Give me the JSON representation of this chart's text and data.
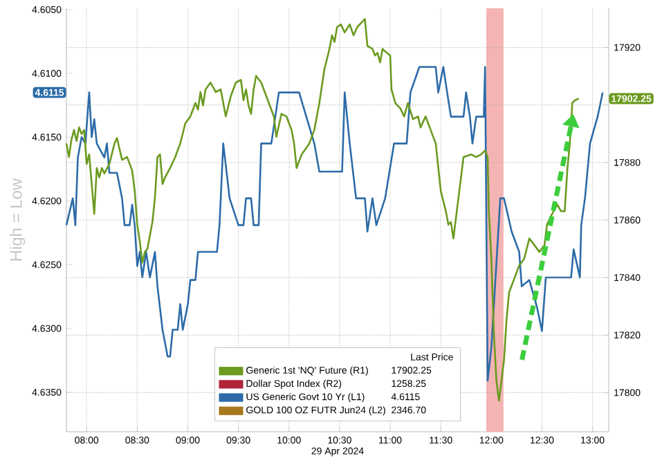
{
  "chart_data": {
    "type": "line",
    "xlabel": "29 Apr 2024",
    "ylabel": "High = Low",
    "legend_title": "Last Price",
    "xlim": [
      7.8,
      13.16
    ],
    "xticks": [
      {
        "value": 8,
        "label": "08:00"
      },
      {
        "value": 8.5,
        "label": "08:30"
      },
      {
        "value": 9,
        "label": "09:00"
      },
      {
        "value": 9.5,
        "label": "09:30"
      },
      {
        "value": 10,
        "label": "10:00"
      },
      {
        "value": 10.5,
        "label": "10:30"
      },
      {
        "value": 11,
        "label": "11:00"
      },
      {
        "value": 11.5,
        "label": "11:30"
      },
      {
        "value": 12,
        "label": "12:00"
      },
      {
        "value": 12.5,
        "label": "12:30"
      },
      {
        "value": 13,
        "label": "13:00"
      }
    ],
    "ylim": [
      4.6381,
      4.6049
    ],
    "yticks": [
      {
        "value": 4.605,
        "label": "4.6050"
      },
      {
        "value": 4.61,
        "label": "4.6100"
      },
      {
        "value": 4.615,
        "label": "4.6150"
      },
      {
        "value": 4.62,
        "label": "4.6200"
      },
      {
        "value": 4.625,
        "label": "4.6250"
      },
      {
        "value": 4.63,
        "label": "4.6300"
      },
      {
        "value": 4.635,
        "label": "4.6350"
      }
    ],
    "y2lim": [
      17786.4,
      17933.6
    ],
    "y2ticks": [
      17800,
      17820,
      17840,
      17860,
      17880,
      {
        "value": 17900,
        "label": null
      },
      17920
    ],
    "grid": true,
    "legend": "bottom",
    "bands": [
      {
        "axis": "x",
        "from": 11.95,
        "to": 12.12,
        "color": "#f4b4b4"
      }
    ],
    "annotations": [
      "17902.25",
      "1258.25",
      "4.6115",
      "2346.70",
      "4.6115",
      "17902.25"
    ],
    "series": [
      {
        "name": "Generic 1st 'NQ' Future (R1)",
        "color": "#6b9a1f",
        "axis": "y2",
        "x": [
          7.8,
          7.825,
          7.85,
          7.875,
          7.9,
          7.925,
          7.95,
          7.975,
          8.0,
          8.025,
          8.05,
          8.075,
          8.1,
          8.125,
          8.15,
          8.175,
          8.225,
          8.275,
          8.3,
          8.35,
          8.4,
          8.425,
          8.45,
          8.475,
          8.5,
          8.525,
          8.55,
          8.575,
          8.6,
          8.65,
          8.675,
          8.7,
          8.725,
          8.75,
          8.775,
          8.825,
          8.875,
          8.925,
          8.975,
          9.025,
          9.075,
          9.1,
          9.125,
          9.15,
          9.175,
          9.225,
          9.275,
          9.325,
          9.375,
          9.425,
          9.475,
          9.525,
          9.55,
          9.575,
          9.6,
          9.625,
          9.65,
          9.675,
          9.725,
          9.775,
          9.825,
          9.85,
          9.875,
          9.925,
          9.975,
          10.025,
          10.05,
          10.075,
          10.125,
          10.2,
          10.25,
          10.3,
          10.35,
          10.4,
          10.425,
          10.45,
          10.475,
          10.513,
          10.55,
          10.6,
          10.638,
          10.675,
          10.75,
          10.775,
          10.825,
          10.85,
          10.875,
          10.9,
          10.925,
          10.95,
          11.0,
          11.013,
          11.05,
          11.1,
          11.138,
          11.175,
          11.225,
          11.275,
          11.3,
          11.35,
          11.4,
          11.45,
          11.5,
          11.55,
          11.575,
          11.6,
          11.625,
          11.675,
          11.725,
          11.8,
          11.85,
          11.9,
          11.938,
          11.963,
          11.975,
          12.0,
          12.025,
          12.05,
          12.075,
          12.1,
          12.125,
          12.15,
          12.175,
          12.225,
          12.275,
          12.325,
          12.375,
          12.425,
          12.475,
          12.525,
          12.55,
          12.6,
          12.65,
          12.688,
          12.725,
          12.75,
          12.775,
          12.8,
          12.825,
          12.863
        ],
        "values": [
          17886.6,
          17881.9,
          17888.0,
          17891.3,
          17887.5,
          17892.2,
          17889.9,
          17891.3,
          17879.5,
          17882.8,
          17872.5,
          17862.1,
          17878.1,
          17874.8,
          17878.1,
          17876.2,
          17879.5,
          17886.6,
          17888.5,
          17880.9,
          17881.9,
          17879.5,
          17877.2,
          17870.1,
          17858.4,
          17852.7,
          17845.2,
          17848.9,
          17849.9,
          17859.3,
          17867.8,
          17881.9,
          17882.8,
          17872.5,
          17874.8,
          17878.1,
          17881.9,
          17886.6,
          17893.6,
          17896.0,
          17900.7,
          17898.4,
          17904.5,
          17899.8,
          17905.4,
          17907.8,
          17904.5,
          17905.4,
          17896.0,
          17903.1,
          17907.8,
          17908.7,
          17901.6,
          17905.4,
          17899.8,
          17896.9,
          17905.4,
          17910.1,
          17907.8,
          17903.1,
          17898.4,
          17896.0,
          17888.9,
          17896.9,
          17896.0,
          17891.3,
          17886.6,
          17878.1,
          17882.8,
          17886.6,
          17891.3,
          17900.7,
          17912.5,
          17919.5,
          17924.2,
          17921.9,
          17927.1,
          17928.0,
          17925.2,
          17928.0,
          17924.2,
          17927.1,
          17929.9,
          17920.5,
          17919.5,
          17917.2,
          17918.1,
          17914.8,
          17919.5,
          17918.6,
          17917.2,
          17905.4,
          17900.7,
          17898.8,
          17896.0,
          17900.7,
          17895.1,
          17896.0,
          17892.2,
          17896.0,
          17891.3,
          17886.6,
          17870.1,
          17863.1,
          17858.4,
          17859.3,
          17853.6,
          17867.8,
          17881.9,
          17882.8,
          17881.9,
          17882.8,
          17884.2,
          17881.9,
          17863.1,
          17846.6,
          17820.7,
          17804.2,
          17797.2,
          17804.2,
          17811.3,
          17825.4,
          17834.8,
          17839.5,
          17844.2,
          17846.6,
          17853.6,
          17851.3,
          17848.9,
          17851.3,
          17858.4,
          17862.1,
          17865.4,
          17863.1,
          17863.1,
          17877.2,
          17886.6,
          17900.7,
          17901.6,
          17902.2
        ]
      },
      {
        "name": "Dollar Spot Index (R2)",
        "color": "#b0243a"
      },
      {
        "name": "US Generic Govt 10 Yr (L1)",
        "color": "#2c6ba8",
        "x": [
          7.8,
          7.863,
          7.888,
          7.913,
          7.95,
          7.988,
          8.025,
          8.05,
          8.075,
          8.1,
          8.175,
          8.2,
          8.225,
          8.3,
          8.35,
          8.375,
          8.425,
          8.45,
          8.475,
          8.5,
          8.525,
          8.55,
          8.588,
          8.625,
          8.675,
          8.7,
          8.75,
          8.8,
          8.825,
          8.85,
          8.9,
          8.925,
          8.95,
          9.0,
          9.025,
          9.075,
          9.1,
          9.288,
          9.313,
          9.35,
          9.413,
          9.5,
          9.55,
          9.575,
          9.625,
          9.65,
          9.7,
          9.725,
          9.825,
          9.9,
          10.1,
          10.25,
          10.3,
          10.525,
          10.55,
          10.6,
          10.663,
          10.75,
          10.775,
          10.825,
          10.863,
          10.95,
          11.038,
          11.163,
          11.2,
          11.288,
          11.45,
          11.475,
          11.525,
          11.563,
          11.6,
          11.725,
          11.75,
          11.788,
          11.813,
          11.85,
          11.925,
          11.938,
          11.963,
          12.0,
          12.088,
          12.125,
          12.2,
          12.275,
          12.3,
          12.375,
          12.45,
          12.5,
          12.538,
          12.788,
          12.813,
          12.875,
          12.888,
          12.925,
          12.975,
          13.05,
          13.1
        ],
        "values": [
          4.6219,
          4.6198,
          4.6219,
          4.6166,
          4.615,
          4.6155,
          4.6115,
          4.615,
          4.6136,
          4.6155,
          4.6166,
          4.6155,
          4.6178,
          4.6178,
          4.6198,
          4.6219,
          4.6219,
          4.6203,
          4.6219,
          4.6251,
          4.624,
          4.626,
          4.624,
          4.626,
          4.624,
          4.6267,
          4.6301,
          4.6322,
          4.6322,
          4.6301,
          4.6301,
          4.6281,
          4.6301,
          4.6281,
          4.6262,
          4.6262,
          4.624,
          4.624,
          4.6219,
          4.6155,
          4.6198,
          4.6219,
          4.6219,
          4.6198,
          4.6198,
          4.6219,
          4.6219,
          4.6155,
          4.6155,
          4.6115,
          4.6115,
          4.6155,
          4.6177,
          4.6177,
          4.6115,
          4.6155,
          4.6198,
          4.6198,
          4.6224,
          4.6198,
          4.6219,
          4.6198,
          4.6155,
          4.6155,
          4.6115,
          4.6095,
          4.6095,
          4.6115,
          4.6095,
          4.6115,
          4.6134,
          4.6134,
          4.6115,
          4.6134,
          4.6155,
          4.6134,
          4.6134,
          4.6095,
          4.6341,
          4.6315,
          4.6198,
          4.6198,
          4.6224,
          4.624,
          4.6267,
          4.6262,
          4.6283,
          4.6302,
          4.626,
          4.626,
          4.6238,
          4.626,
          4.6219,
          4.6198,
          4.6155,
          4.6134,
          4.6115
        ]
      },
      {
        "name": "GOLD 100 OZ FUTR Jun24 (L2)",
        "color": "#a8781e"
      }
    ]
  }
}
